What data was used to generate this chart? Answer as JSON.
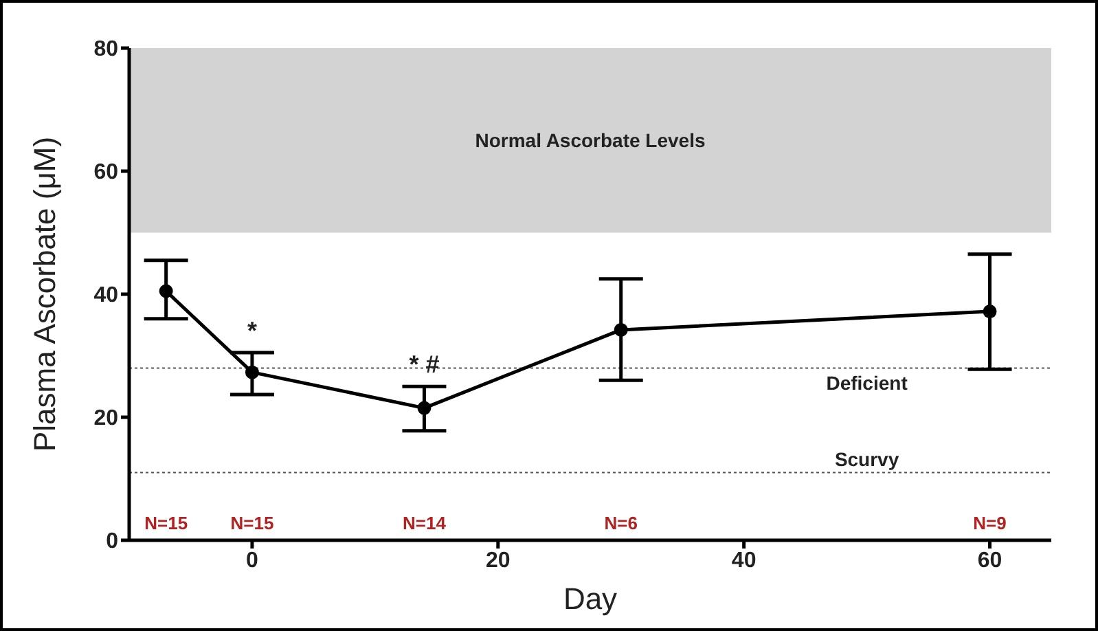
{
  "chart_data": {
    "type": "line",
    "xlabel": "Day",
    "ylabel": "Plasma Ascorbate (μM)",
    "x": [
      -7,
      0,
      14,
      30,
      60
    ],
    "series": [
      {
        "color": "#000000",
        "values": [
          40.5,
          27.3,
          21.5,
          34.2,
          37.2
        ],
        "errors": [
          [
            36,
            45.5
          ],
          [
            23.7,
            30.5
          ],
          [
            17.8,
            25
          ],
          [
            26,
            42.5
          ],
          [
            27.8,
            46.5
          ]
        ]
      }
    ],
    "xlim": [
      -10,
      65
    ],
    "xticks": [
      0,
      20,
      40,
      60
    ],
    "ylim": [
      0,
      80
    ],
    "yticks": [
      0,
      20,
      40,
      60,
      80
    ],
    "marker": "circle",
    "line_style": "solid",
    "grid": false,
    "bands": [
      {
        "axis": "y",
        "from": 50,
        "to": 80,
        "label": "Normal Ascorbate Levels",
        "color": "#d3d3d3"
      }
    ],
    "ref_lines": [
      {
        "axis": "y",
        "value": 28,
        "label": "Deficient",
        "line_style": "dotted",
        "color": "#555555"
      },
      {
        "axis": "y",
        "value": 11,
        "label": "Scurvy",
        "line_style": "dotted",
        "color": "#555555"
      }
    ],
    "annotations": [
      {
        "text": "*",
        "x": 0,
        "y": 27.3
      },
      {
        "text": "* #",
        "x": 14,
        "y": 21.5
      },
      "N=15",
      "N=15",
      "N=14",
      "N=6",
      "N=9"
    ]
  }
}
